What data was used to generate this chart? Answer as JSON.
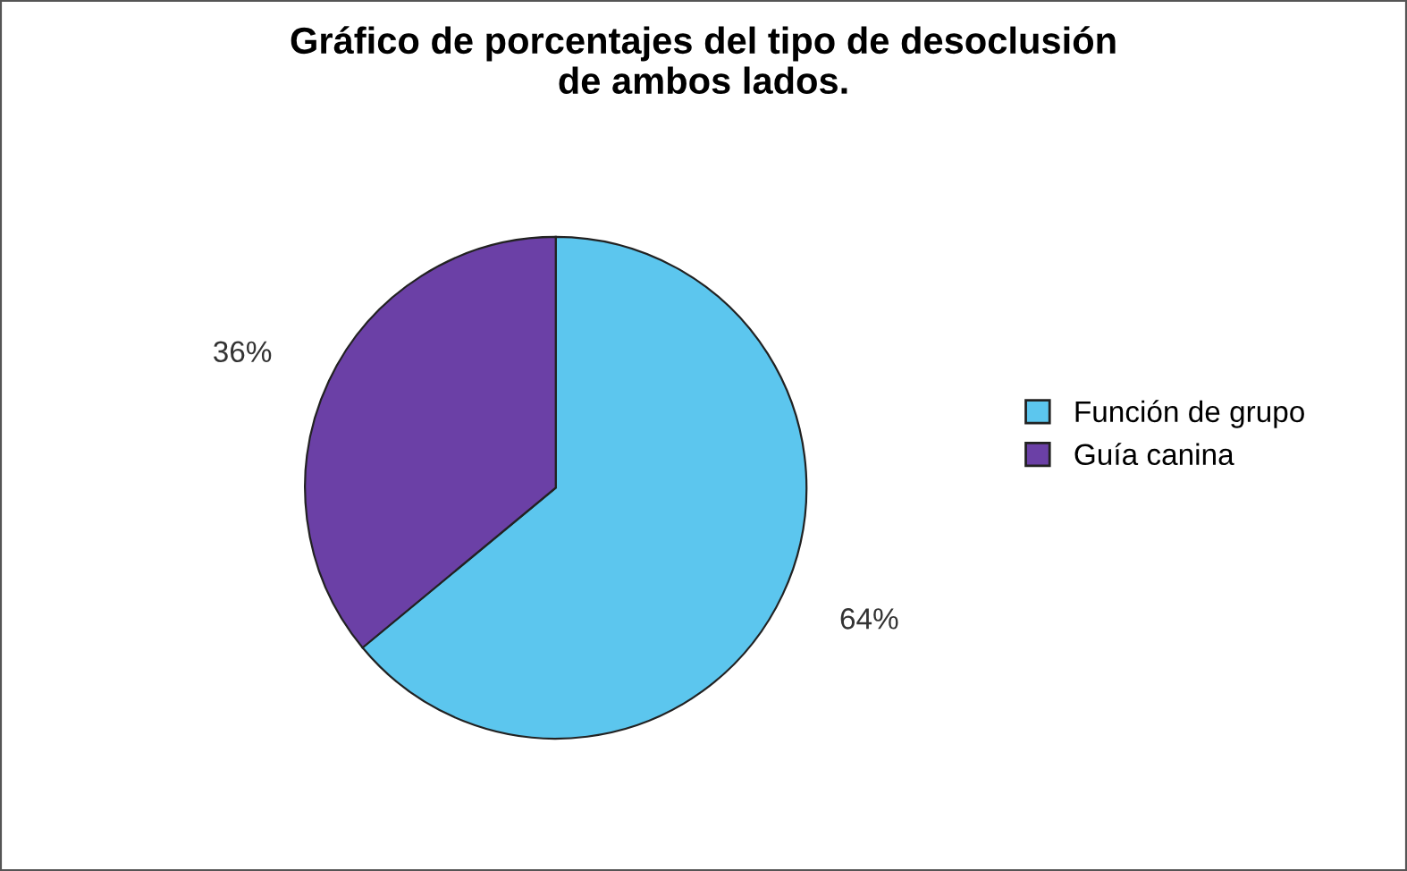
{
  "chart_data": {
    "type": "pie",
    "title": "Gráfico de porcentajes del tipo de desoclusión\nde ambos lados.",
    "categories": [
      "Función de grupo",
      "Guía canina"
    ],
    "values": [
      64,
      36
    ],
    "colors": [
      "#5cc6ee",
      "#6b40a6"
    ],
    "value_labels": [
      "64%",
      "36%"
    ],
    "legend": "right"
  }
}
